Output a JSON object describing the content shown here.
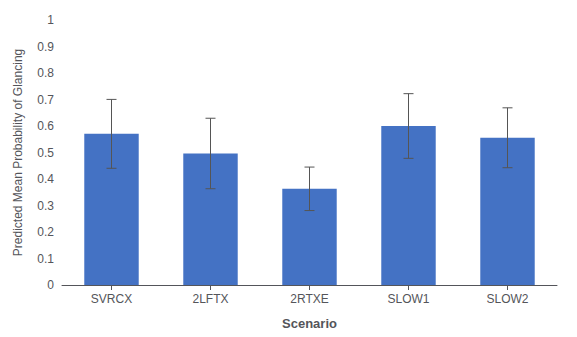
{
  "chart_data": {
    "type": "bar",
    "categories": [
      "SVRCX",
      "2LFTX",
      "2RTXE",
      "SLOW1",
      "SLOW2"
    ],
    "values": [
      0.5704,
      0.4963,
      0.363,
      0.6,
      0.5556
    ],
    "error_upper": [
      0.13,
      0.133,
      0.082,
      0.122,
      0.113
    ],
    "error_lower": [
      0.13,
      0.133,
      0.082,
      0.122,
      0.113
    ],
    "color": "#4472C4",
    "xlabel": "Scenario",
    "ylabel": "Predicted Mean Probability of Glancing",
    "ylim": [
      0,
      1.0
    ],
    "yticks": [
      0,
      0.1,
      0.2,
      0.3,
      0.4,
      0.5,
      0.6,
      0.7,
      0.8,
      0.9,
      1
    ],
    "grid": false
  }
}
